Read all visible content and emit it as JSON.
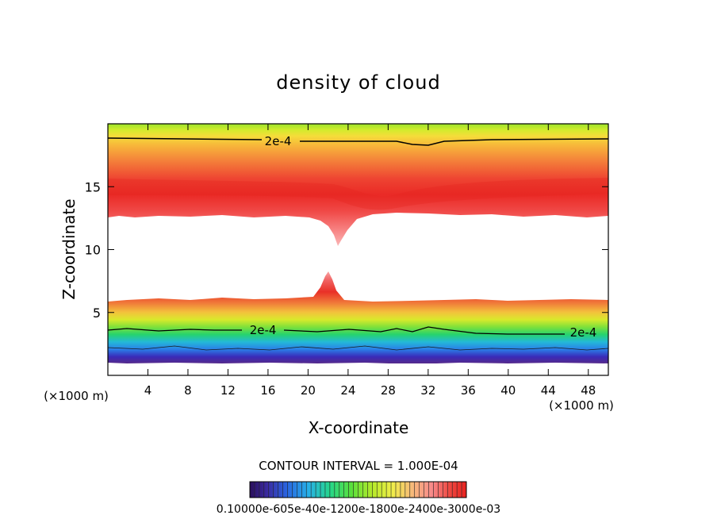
{
  "chart_data": {
    "type": "heatmap",
    "title": "density of cloud",
    "xlabel": "X-coordinate",
    "ylabel": "Z-coordinate",
    "x_unit": "(×1000 m)",
    "y_unit": "(×1000 m)",
    "xlim": [
      0,
      50
    ],
    "ylim": [
      0,
      20
    ],
    "x_ticks": [
      4,
      8,
      12,
      16,
      20,
      24,
      28,
      32,
      36,
      40,
      44,
      48
    ],
    "y_ticks": [
      5,
      10,
      15
    ],
    "contour_interval_text": "CONTOUR INTERVAL = 1.000E-04",
    "contour_labels": [
      {
        "text": "2e-4",
        "x": 17.0,
        "z": 18.6
      },
      {
        "text": "2e-4",
        "x": 15.5,
        "z": 3.6
      },
      {
        "text": "2e-4",
        "x": 47.5,
        "z": 3.4
      }
    ],
    "colorbar_labels": [
      "0.1000e-6",
      "0.6000e-4",
      "0.1200e-3",
      "0.1800e-3",
      "0.2400e-3",
      "0.3000e-3"
    ],
    "colorbar_text": "0.10000e-605e-40e-1200e-1800e-2400e-3000e-03",
    "colors": [
      "#2a0f5c",
      "#3a2aa0",
      "#2a64e0",
      "#27b0e8",
      "#25d68a",
      "#5ae03b",
      "#b9ea2b",
      "#f0ed4a",
      "#f7b97a",
      "#f78a8a",
      "#ef4a42",
      "#e8221f"
    ]
  }
}
